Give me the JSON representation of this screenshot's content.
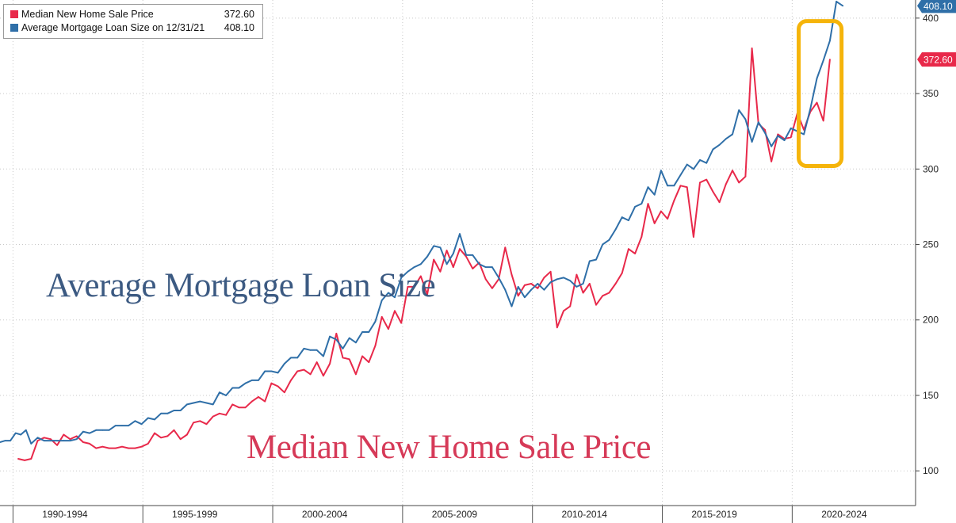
{
  "chart_data": {
    "type": "line",
    "legend": {
      "placement": "top-left",
      "entries": [
        {
          "name": "Median New Home Sale Price",
          "value": "372.60",
          "color": "#e8294a"
        },
        {
          "name": "Average Mortgage Loan Size on 12/31/21",
          "value": "408.10",
          "color": "#2f6fa8"
        }
      ]
    },
    "annotations": [
      {
        "text": "Average Mortgage Loan Size",
        "color": "#3c5a82"
      },
      {
        "text": "Median New Home Sale Price",
        "color": "#d63a58"
      }
    ],
    "highlight_box": {
      "color": "#f5b40a",
      "x_range": [
        2020.25,
        2021.9
      ],
      "y_range": [
        302,
        398
      ]
    },
    "last_value_tags": [
      {
        "series": 1,
        "text": "408.10"
      },
      {
        "series": 0,
        "text": "372.60"
      }
    ],
    "x_axis": {
      "range": [
        1989.5,
        2024.75
      ],
      "tick_labels": [
        "1990-1994",
        "1995-1999",
        "2000-2004",
        "2005-2009",
        "2010-2014",
        "2015-2019",
        "2020-2024"
      ],
      "tick_label_centers": [
        1992,
        1997,
        2002,
        2007,
        2012,
        2017,
        2022
      ],
      "separators": [
        1990,
        1995,
        2000,
        2005,
        2010,
        2015,
        2020
      ]
    },
    "y_axis": {
      "position": "right",
      "range": [
        77,
        412
      ],
      "ticks": [
        100,
        150,
        200,
        250,
        300,
        350,
        400
      ],
      "tick_labels": [
        "100",
        "150",
        "200",
        "250",
        "300",
        "350",
        "400"
      ]
    },
    "grid": "dotted-horizontal-and-vertical",
    "series": [
      {
        "name": "Median New Home Sale Price",
        "color": "#e8294a",
        "points": [
          [
            1990.2,
            108
          ],
          [
            1990.45,
            107
          ],
          [
            1990.7,
            108
          ],
          [
            1990.95,
            120
          ],
          [
            1991.2,
            122
          ],
          [
            1991.45,
            121
          ],
          [
            1991.7,
            117
          ],
          [
            1991.95,
            124
          ],
          [
            1992.2,
            121
          ],
          [
            1992.45,
            123
          ],
          [
            1992.7,
            119
          ],
          [
            1992.95,
            118
          ],
          [
            1993.2,
            115
          ],
          [
            1993.45,
            116
          ],
          [
            1993.7,
            115
          ],
          [
            1993.95,
            115
          ],
          [
            1994.2,
            116
          ],
          [
            1994.45,
            115
          ],
          [
            1994.7,
            115
          ],
          [
            1994.95,
            116
          ],
          [
            1995.2,
            118
          ],
          [
            1995.45,
            125
          ],
          [
            1995.7,
            122
          ],
          [
            1995.95,
            123
          ],
          [
            1996.2,
            127
          ],
          [
            1996.45,
            121
          ],
          [
            1996.7,
            124
          ],
          [
            1996.95,
            132
          ],
          [
            1997.2,
            133
          ],
          [
            1997.45,
            131
          ],
          [
            1997.7,
            136
          ],
          [
            1997.95,
            138
          ],
          [
            1998.2,
            137
          ],
          [
            1998.45,
            144
          ],
          [
            1998.7,
            142
          ],
          [
            1998.95,
            142
          ],
          [
            1999.2,
            146
          ],
          [
            1999.45,
            149
          ],
          [
            1999.7,
            146
          ],
          [
            1999.95,
            158
          ],
          [
            2000.2,
            156
          ],
          [
            2000.45,
            152
          ],
          [
            2000.7,
            160
          ],
          [
            2000.95,
            166
          ],
          [
            2001.2,
            167
          ],
          [
            2001.45,
            164
          ],
          [
            2001.7,
            172
          ],
          [
            2001.95,
            163
          ],
          [
            2002.2,
            171
          ],
          [
            2002.45,
            191
          ],
          [
            2002.7,
            175
          ],
          [
            2002.95,
            174
          ],
          [
            2003.2,
            164
          ],
          [
            2003.45,
            176
          ],
          [
            2003.7,
            172
          ],
          [
            2003.95,
            183
          ],
          [
            2004.2,
            202
          ],
          [
            2004.45,
            194
          ],
          [
            2004.7,
            206
          ],
          [
            2004.95,
            198
          ],
          [
            2005.2,
            222
          ],
          [
            2005.45,
            222
          ],
          [
            2005.7,
            229
          ],
          [
            2005.95,
            217
          ],
          [
            2006.2,
            240
          ],
          [
            2006.45,
            232
          ],
          [
            2006.7,
            246
          ],
          [
            2006.95,
            235
          ],
          [
            2007.2,
            247
          ],
          [
            2007.45,
            242
          ],
          [
            2007.7,
            234
          ],
          [
            2007.95,
            238
          ],
          [
            2008.2,
            227
          ],
          [
            2008.45,
            221
          ],
          [
            2008.7,
            227
          ],
          [
            2008.95,
            248
          ],
          [
            2009.2,
            230
          ],
          [
            2009.45,
            216
          ],
          [
            2009.7,
            223
          ],
          [
            2009.95,
            224
          ],
          [
            2010.2,
            221
          ],
          [
            2010.45,
            228
          ],
          [
            2010.7,
            232
          ],
          [
            2010.95,
            195
          ],
          [
            2011.2,
            206
          ],
          [
            2011.45,
            209
          ],
          [
            2011.7,
            230
          ],
          [
            2011.95,
            218
          ],
          [
            2012.2,
            224
          ],
          [
            2012.45,
            210
          ],
          [
            2012.7,
            216
          ],
          [
            2012.95,
            218
          ],
          [
            2013.2,
            224
          ],
          [
            2013.45,
            231
          ],
          [
            2013.7,
            247
          ],
          [
            2013.95,
            244
          ],
          [
            2014.2,
            255
          ],
          [
            2014.45,
            277
          ],
          [
            2014.7,
            264
          ],
          [
            2014.95,
            272
          ],
          [
            2015.2,
            267
          ],
          [
            2015.45,
            279
          ],
          [
            2015.7,
            289
          ],
          [
            2015.95,
            288
          ],
          [
            2016.2,
            255
          ],
          [
            2016.45,
            291
          ],
          [
            2016.7,
            293
          ],
          [
            2016.95,
            285
          ],
          [
            2017.2,
            278
          ],
          [
            2017.45,
            290
          ],
          [
            2017.7,
            299
          ],
          [
            2017.95,
            291
          ],
          [
            2018.2,
            295
          ],
          [
            2018.45,
            380
          ],
          [
            2018.7,
            330
          ],
          [
            2018.95,
            326
          ],
          [
            2019.2,
            305
          ],
          [
            2019.45,
            323
          ],
          [
            2019.7,
            320
          ],
          [
            2019.95,
            321
          ],
          [
            2020.2,
            337
          ],
          [
            2020.45,
            326
          ],
          [
            2020.7,
            338
          ],
          [
            2020.95,
            344
          ],
          [
            2021.2,
            332
          ],
          [
            2021.45,
            372.6
          ]
        ]
      },
      {
        "name": "Average Mortgage Loan Size on 12/31/21",
        "color": "#2f6fa8",
        "points": [
          [
            1989.5,
            119
          ],
          [
            1989.7,
            120
          ],
          [
            1989.9,
            120
          ],
          [
            1990.1,
            125
          ],
          [
            1990.3,
            124
          ],
          [
            1990.5,
            127
          ],
          [
            1990.7,
            118
          ],
          [
            1990.95,
            122
          ],
          [
            1991.2,
            120
          ],
          [
            1991.45,
            120
          ],
          [
            1991.7,
            120
          ],
          [
            1991.95,
            120
          ],
          [
            1992.2,
            120
          ],
          [
            1992.45,
            121
          ],
          [
            1992.7,
            126
          ],
          [
            1992.95,
            125
          ],
          [
            1993.2,
            127
          ],
          [
            1993.45,
            127
          ],
          [
            1993.7,
            127
          ],
          [
            1993.95,
            130
          ],
          [
            1994.2,
            130
          ],
          [
            1994.45,
            130
          ],
          [
            1994.7,
            133
          ],
          [
            1994.95,
            131
          ],
          [
            1995.2,
            135
          ],
          [
            1995.45,
            134
          ],
          [
            1995.7,
            138
          ],
          [
            1995.95,
            138
          ],
          [
            1996.2,
            140
          ],
          [
            1996.45,
            140
          ],
          [
            1996.7,
            144
          ],
          [
            1996.95,
            145
          ],
          [
            1997.2,
            146
          ],
          [
            1997.45,
            145
          ],
          [
            1997.7,
            144
          ],
          [
            1997.95,
            152
          ],
          [
            1998.2,
            150
          ],
          [
            1998.45,
            155
          ],
          [
            1998.7,
            155
          ],
          [
            1998.95,
            158
          ],
          [
            1999.2,
            160
          ],
          [
            1999.45,
            160
          ],
          [
            1999.7,
            166
          ],
          [
            1999.95,
            166
          ],
          [
            2000.2,
            165
          ],
          [
            2000.45,
            171
          ],
          [
            2000.7,
            175
          ],
          [
            2000.95,
            175
          ],
          [
            2001.2,
            181
          ],
          [
            2001.45,
            180
          ],
          [
            2001.7,
            180
          ],
          [
            2001.95,
            176
          ],
          [
            2002.2,
            189
          ],
          [
            2002.45,
            187
          ],
          [
            2002.7,
            181
          ],
          [
            2002.95,
            188
          ],
          [
            2003.2,
            185
          ],
          [
            2003.45,
            192
          ],
          [
            2003.7,
            192
          ],
          [
            2003.95,
            199
          ],
          [
            2004.2,
            213
          ],
          [
            2004.45,
            218
          ],
          [
            2004.7,
            215
          ],
          [
            2004.95,
            228
          ],
          [
            2005.2,
            232
          ],
          [
            2005.45,
            235
          ],
          [
            2005.7,
            237
          ],
          [
            2005.95,
            242
          ],
          [
            2006.2,
            249
          ],
          [
            2006.45,
            248
          ],
          [
            2006.7,
            237
          ],
          [
            2006.95,
            244
          ],
          [
            2007.2,
            257
          ],
          [
            2007.45,
            243
          ],
          [
            2007.7,
            243
          ],
          [
            2007.95,
            237
          ],
          [
            2008.2,
            235
          ],
          [
            2008.45,
            235
          ],
          [
            2008.7,
            228
          ],
          [
            2008.95,
            220
          ],
          [
            2009.2,
            209
          ],
          [
            2009.45,
            222
          ],
          [
            2009.7,
            215
          ],
          [
            2009.95,
            220
          ],
          [
            2010.2,
            224
          ],
          [
            2010.45,
            220
          ],
          [
            2010.7,
            225
          ],
          [
            2010.95,
            227
          ],
          [
            2011.2,
            228
          ],
          [
            2011.45,
            226
          ],
          [
            2011.7,
            222
          ],
          [
            2011.95,
            224
          ],
          [
            2012.2,
            239
          ],
          [
            2012.45,
            240
          ],
          [
            2012.7,
            250
          ],
          [
            2012.95,
            253
          ],
          [
            2013.2,
            260
          ],
          [
            2013.45,
            268
          ],
          [
            2013.7,
            266
          ],
          [
            2013.95,
            275
          ],
          [
            2014.2,
            277
          ],
          [
            2014.45,
            288
          ],
          [
            2014.7,
            283
          ],
          [
            2014.95,
            299
          ],
          [
            2015.2,
            289
          ],
          [
            2015.45,
            289
          ],
          [
            2015.7,
            296
          ],
          [
            2015.95,
            303
          ],
          [
            2016.2,
            300
          ],
          [
            2016.45,
            306
          ],
          [
            2016.7,
            304
          ],
          [
            2016.95,
            313
          ],
          [
            2017.2,
            316
          ],
          [
            2017.45,
            320
          ],
          [
            2017.7,
            323
          ],
          [
            2017.95,
            339
          ],
          [
            2018.2,
            333
          ],
          [
            2018.45,
            318
          ],
          [
            2018.7,
            331
          ],
          [
            2018.95,
            324
          ],
          [
            2019.2,
            315
          ],
          [
            2019.45,
            322
          ],
          [
            2019.7,
            319
          ],
          [
            2019.95,
            327
          ],
          [
            2020.2,
            325
          ],
          [
            2020.45,
            323
          ],
          [
            2020.7,
            340
          ],
          [
            2020.95,
            360
          ],
          [
            2021.2,
            372
          ],
          [
            2021.45,
            385
          ],
          [
            2021.7,
            411
          ],
          [
            2021.95,
            408.1
          ]
        ]
      }
    ]
  }
}
